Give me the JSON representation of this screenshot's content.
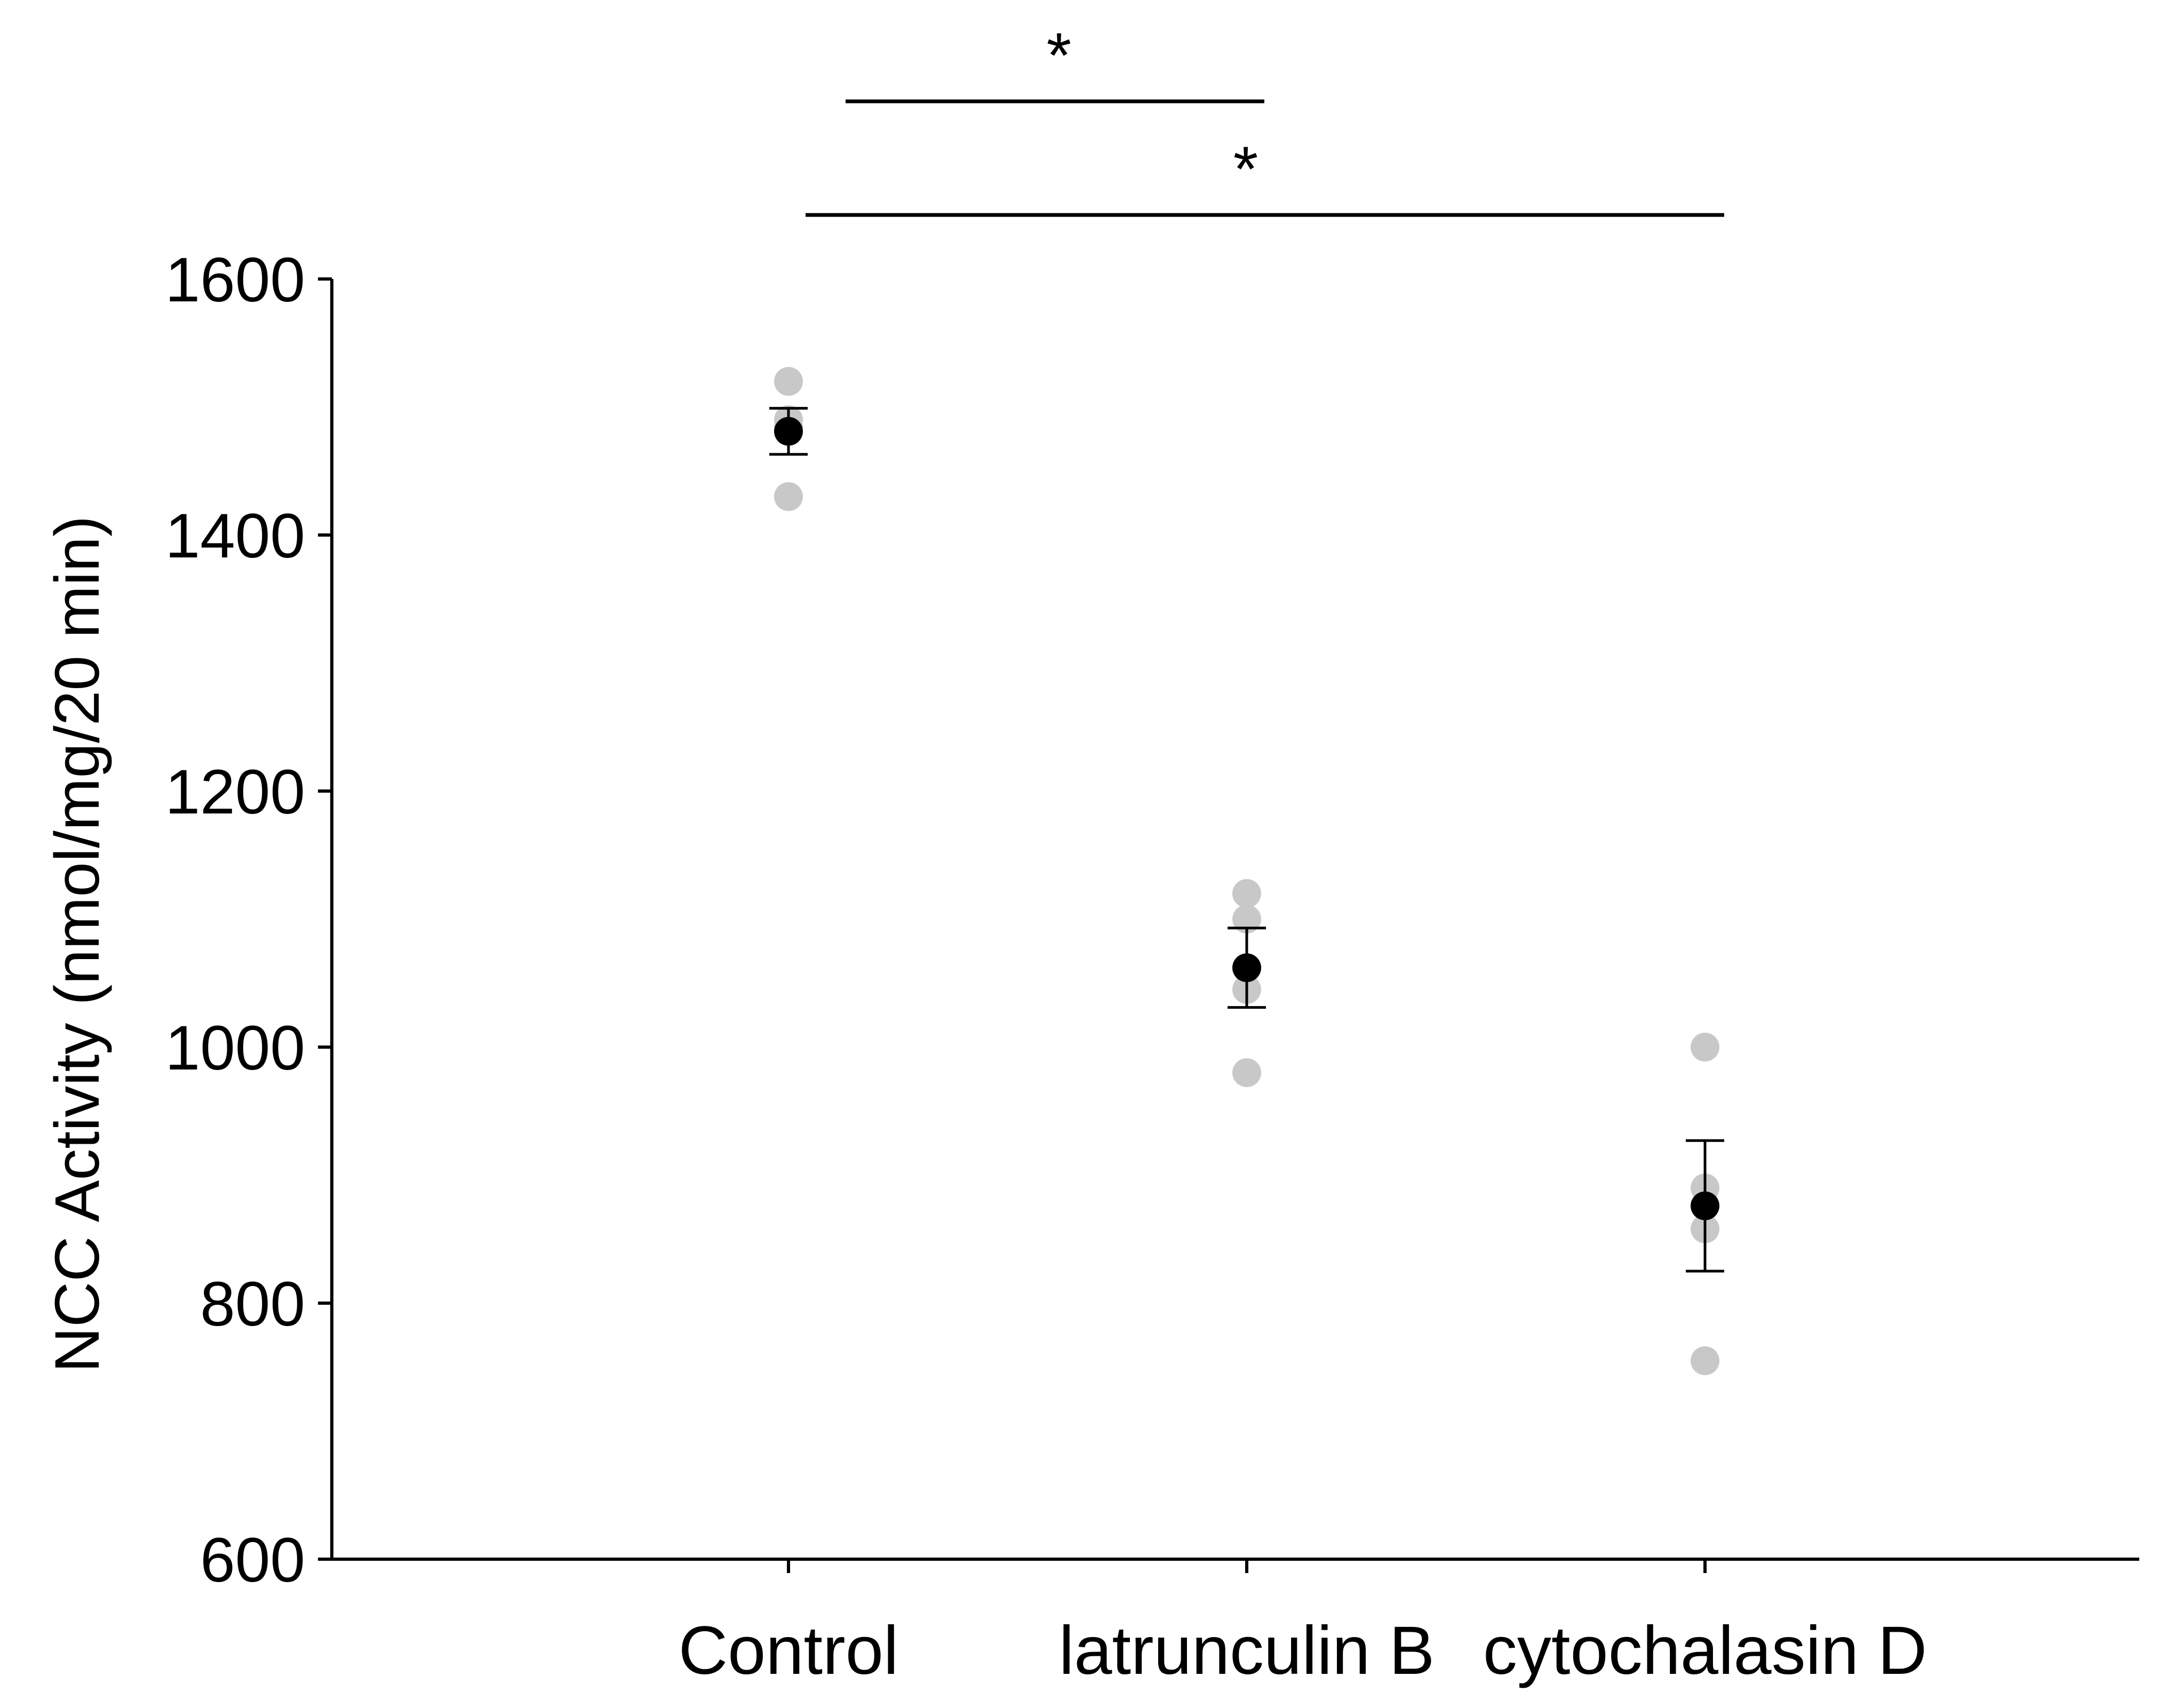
{
  "chart_data": {
    "type": "scatter",
    "title": "",
    "xlabel": "",
    "ylabel": "NCC Activity (nmol/mg/20 min)",
    "categories": [
      "Control",
      "latrunculin B",
      "cytochalasin D"
    ],
    "ylim": [
      600,
      1600
    ],
    "yticks": [
      600,
      800,
      1000,
      1200,
      1400,
      1600
    ],
    "ytick_labels": [
      "600",
      "800",
      "1000",
      "1200",
      "1400",
      "1600"
    ],
    "grid": false,
    "legend": "none",
    "point_color": "#c8c8c8",
    "mean_color": "#000000",
    "groups": [
      {
        "category": "Control",
        "points": [
          1520,
          1490,
          1485,
          1430
        ],
        "mean": 1481,
        "sem": 18
      },
      {
        "category": "latrunculin B",
        "points": [
          1120,
          1100,
          1045,
          980
        ],
        "mean": 1062,
        "sem": 31
      },
      {
        "category": "cytochalasin D",
        "points": [
          1000,
          890,
          858,
          755
        ],
        "mean": 876,
        "sem": 51
      }
    ],
    "significance": [
      {
        "from": "Control",
        "to": "latrunculin B",
        "label": "*"
      },
      {
        "from": "Control",
        "to": "cytochalasin D",
        "label": "*"
      }
    ]
  }
}
